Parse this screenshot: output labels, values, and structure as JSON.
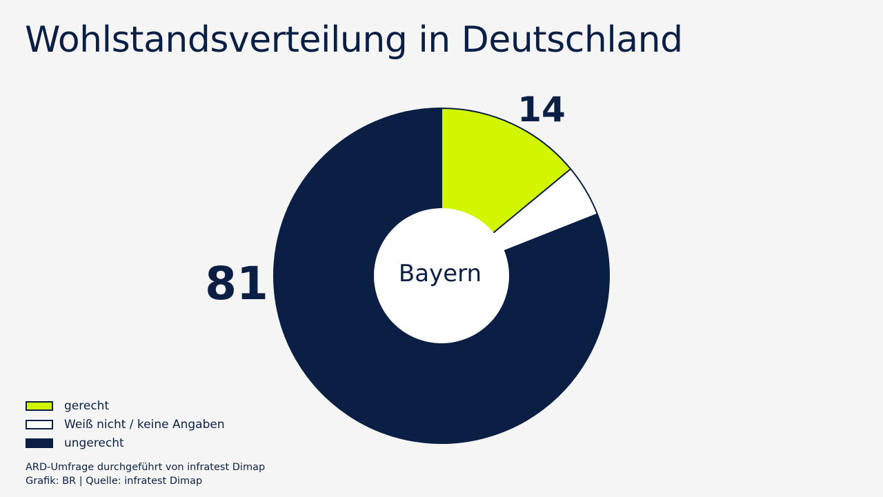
{
  "chart_data": {
    "type": "pie",
    "title": "Wohlstandsverteilung in Deutschland",
    "center_label": "Bayern",
    "categories": [
      "gerecht",
      "Weiß nicht / keine Angaben",
      "ungerecht"
    ],
    "values": [
      14,
      5,
      81
    ],
    "data_labels": [
      "14",
      "",
      "81"
    ],
    "colors": [
      "#d2f500",
      "#ffffff",
      "#0b1f44"
    ],
    "legend_position": "bottom-left"
  },
  "legend": {
    "items": [
      {
        "label": "gerecht",
        "color": "#d2f500"
      },
      {
        "label": "Weiß nicht / keine Angaben",
        "color": "#ffffff"
      },
      {
        "label": "ungerecht",
        "color": "#0b1f44"
      }
    ]
  },
  "footer": {
    "line1": "ARD-Umfrage durchgeführt von infratest Dimap",
    "line2": "Grafik: BR | Quelle: infratest Dimap"
  }
}
